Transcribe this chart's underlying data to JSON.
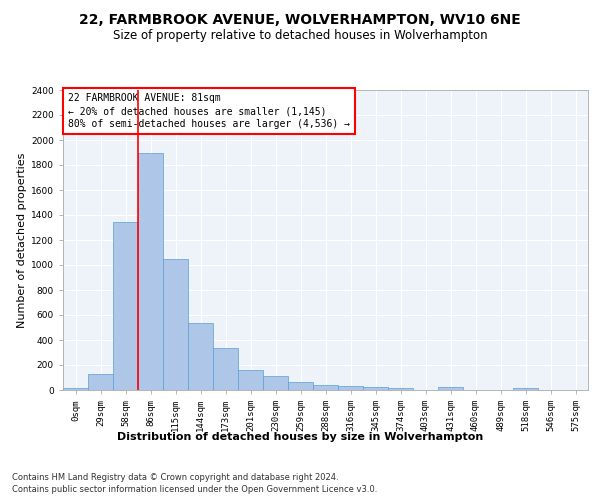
{
  "title1": "22, FARMBROOK AVENUE, WOLVERHAMPTON, WV10 6NE",
  "title2": "Size of property relative to detached houses in Wolverhampton",
  "xlabel": "Distribution of detached houses by size in Wolverhampton",
  "ylabel": "Number of detached properties",
  "footer1": "Contains HM Land Registry data © Crown copyright and database right 2024.",
  "footer2": "Contains public sector information licensed under the Open Government Licence v3.0.",
  "bar_labels": [
    "0sqm",
    "29sqm",
    "58sqm",
    "86sqm",
    "115sqm",
    "144sqm",
    "173sqm",
    "201sqm",
    "230sqm",
    "259sqm",
    "288sqm",
    "316sqm",
    "345sqm",
    "374sqm",
    "403sqm",
    "431sqm",
    "460sqm",
    "489sqm",
    "518sqm",
    "546sqm",
    "575sqm"
  ],
  "bar_values": [
    15,
    125,
    1345,
    1895,
    1045,
    540,
    335,
    160,
    110,
    65,
    40,
    30,
    25,
    20,
    0,
    25,
    0,
    0,
    20,
    0,
    0
  ],
  "bar_color": "#aec6e8",
  "bar_edge_color": "#5a9fd4",
  "red_line_index": 3,
  "annotation_line1": "22 FARMBROOK AVENUE: 81sqm",
  "annotation_line2": "← 20% of detached houses are smaller (1,145)",
  "annotation_line3": "80% of semi-detached houses are larger (4,536) →",
  "ylim": [
    0,
    2400
  ],
  "yticks": [
    0,
    200,
    400,
    600,
    800,
    1000,
    1200,
    1400,
    1600,
    1800,
    2000,
    2200,
    2400
  ],
  "bg_color": "#eef2f9",
  "grid_color": "#ffffff",
  "title1_fontsize": 10,
  "title2_fontsize": 8.5,
  "ylabel_fontsize": 8,
  "xlabel_fontsize": 8,
  "tick_fontsize": 6.5,
  "annotation_fontsize": 7,
  "footer_fontsize": 6
}
